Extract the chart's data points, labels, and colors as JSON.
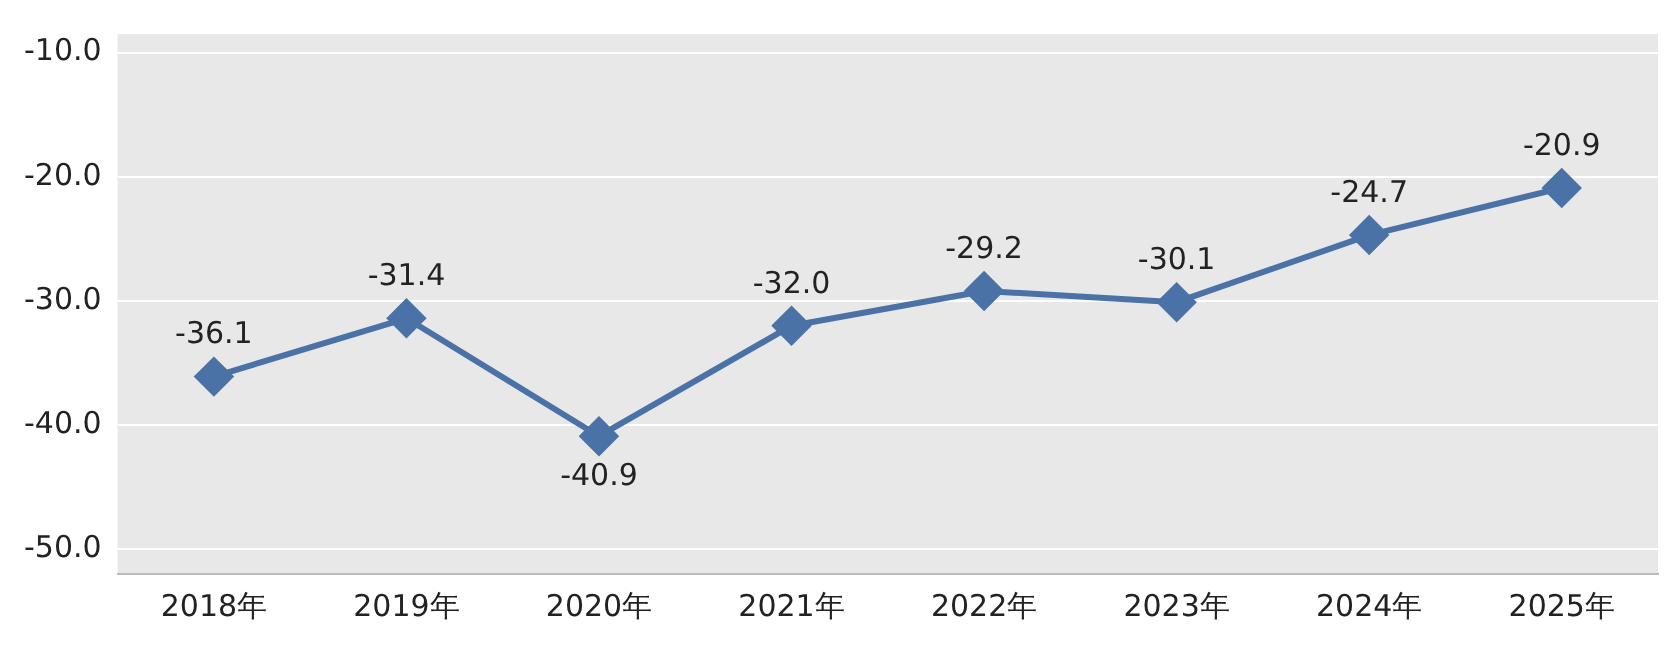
{
  "chart_data": {
    "type": "line",
    "categories": [
      "2018年",
      "2019年",
      "2020年",
      "2021年",
      "2022年",
      "2023年",
      "2024年",
      "2025年"
    ],
    "series": [
      {
        "color": "#4a72a6",
        "values": [
          -36.1,
          -31.4,
          -40.9,
          -32.0,
          -29.2,
          -30.1,
          -24.7,
          -20.9
        ]
      }
    ],
    "ylim": [
      -52,
      -8.5
    ],
    "yticks": [
      {
        "value": -10,
        "label": "-10.0"
      },
      {
        "value": -20,
        "label": "-20.0"
      },
      {
        "value": -30,
        "label": "-30.0"
      },
      {
        "value": -40,
        "label": "-40.0"
      },
      {
        "value": -50,
        "label": "-50.0"
      }
    ],
    "value_labels": [
      "-36.1",
      "-31.4",
      "-40.9",
      "-32.0",
      "-29.2",
      "-30.1",
      "-24.7",
      "-20.9"
    ],
    "grid": "y",
    "legend": false,
    "marker": "diamond",
    "line_style": "solid"
  }
}
